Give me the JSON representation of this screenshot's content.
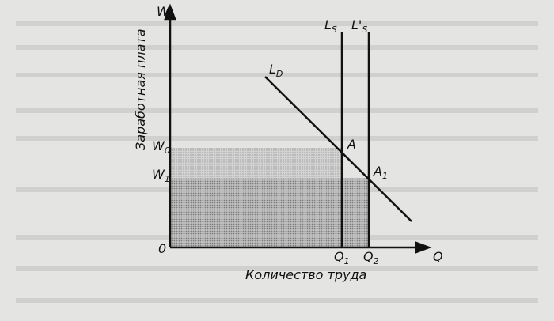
{
  "axes": {
    "y_label": "W",
    "x_label": "Q",
    "origin": "0",
    "y_title": "Заработная плата",
    "x_title": "Количество труда"
  },
  "curves": {
    "supply": {
      "main": "L",
      "sub": "S"
    },
    "supply_new": {
      "main": "L'",
      "sub": "S"
    },
    "demand": {
      "main": "L",
      "sub": "D"
    }
  },
  "points": {
    "a": {
      "main": "A"
    },
    "a1": {
      "main": "A",
      "sub": "1"
    }
  },
  "wages": {
    "w0": {
      "main": "W",
      "sub": "0"
    },
    "w1": {
      "main": "W",
      "sub": "1"
    }
  },
  "quantities": {
    "q1": {
      "main": "Q",
      "sub": "1"
    },
    "q2": {
      "main": "Q",
      "sub": "2"
    }
  }
}
